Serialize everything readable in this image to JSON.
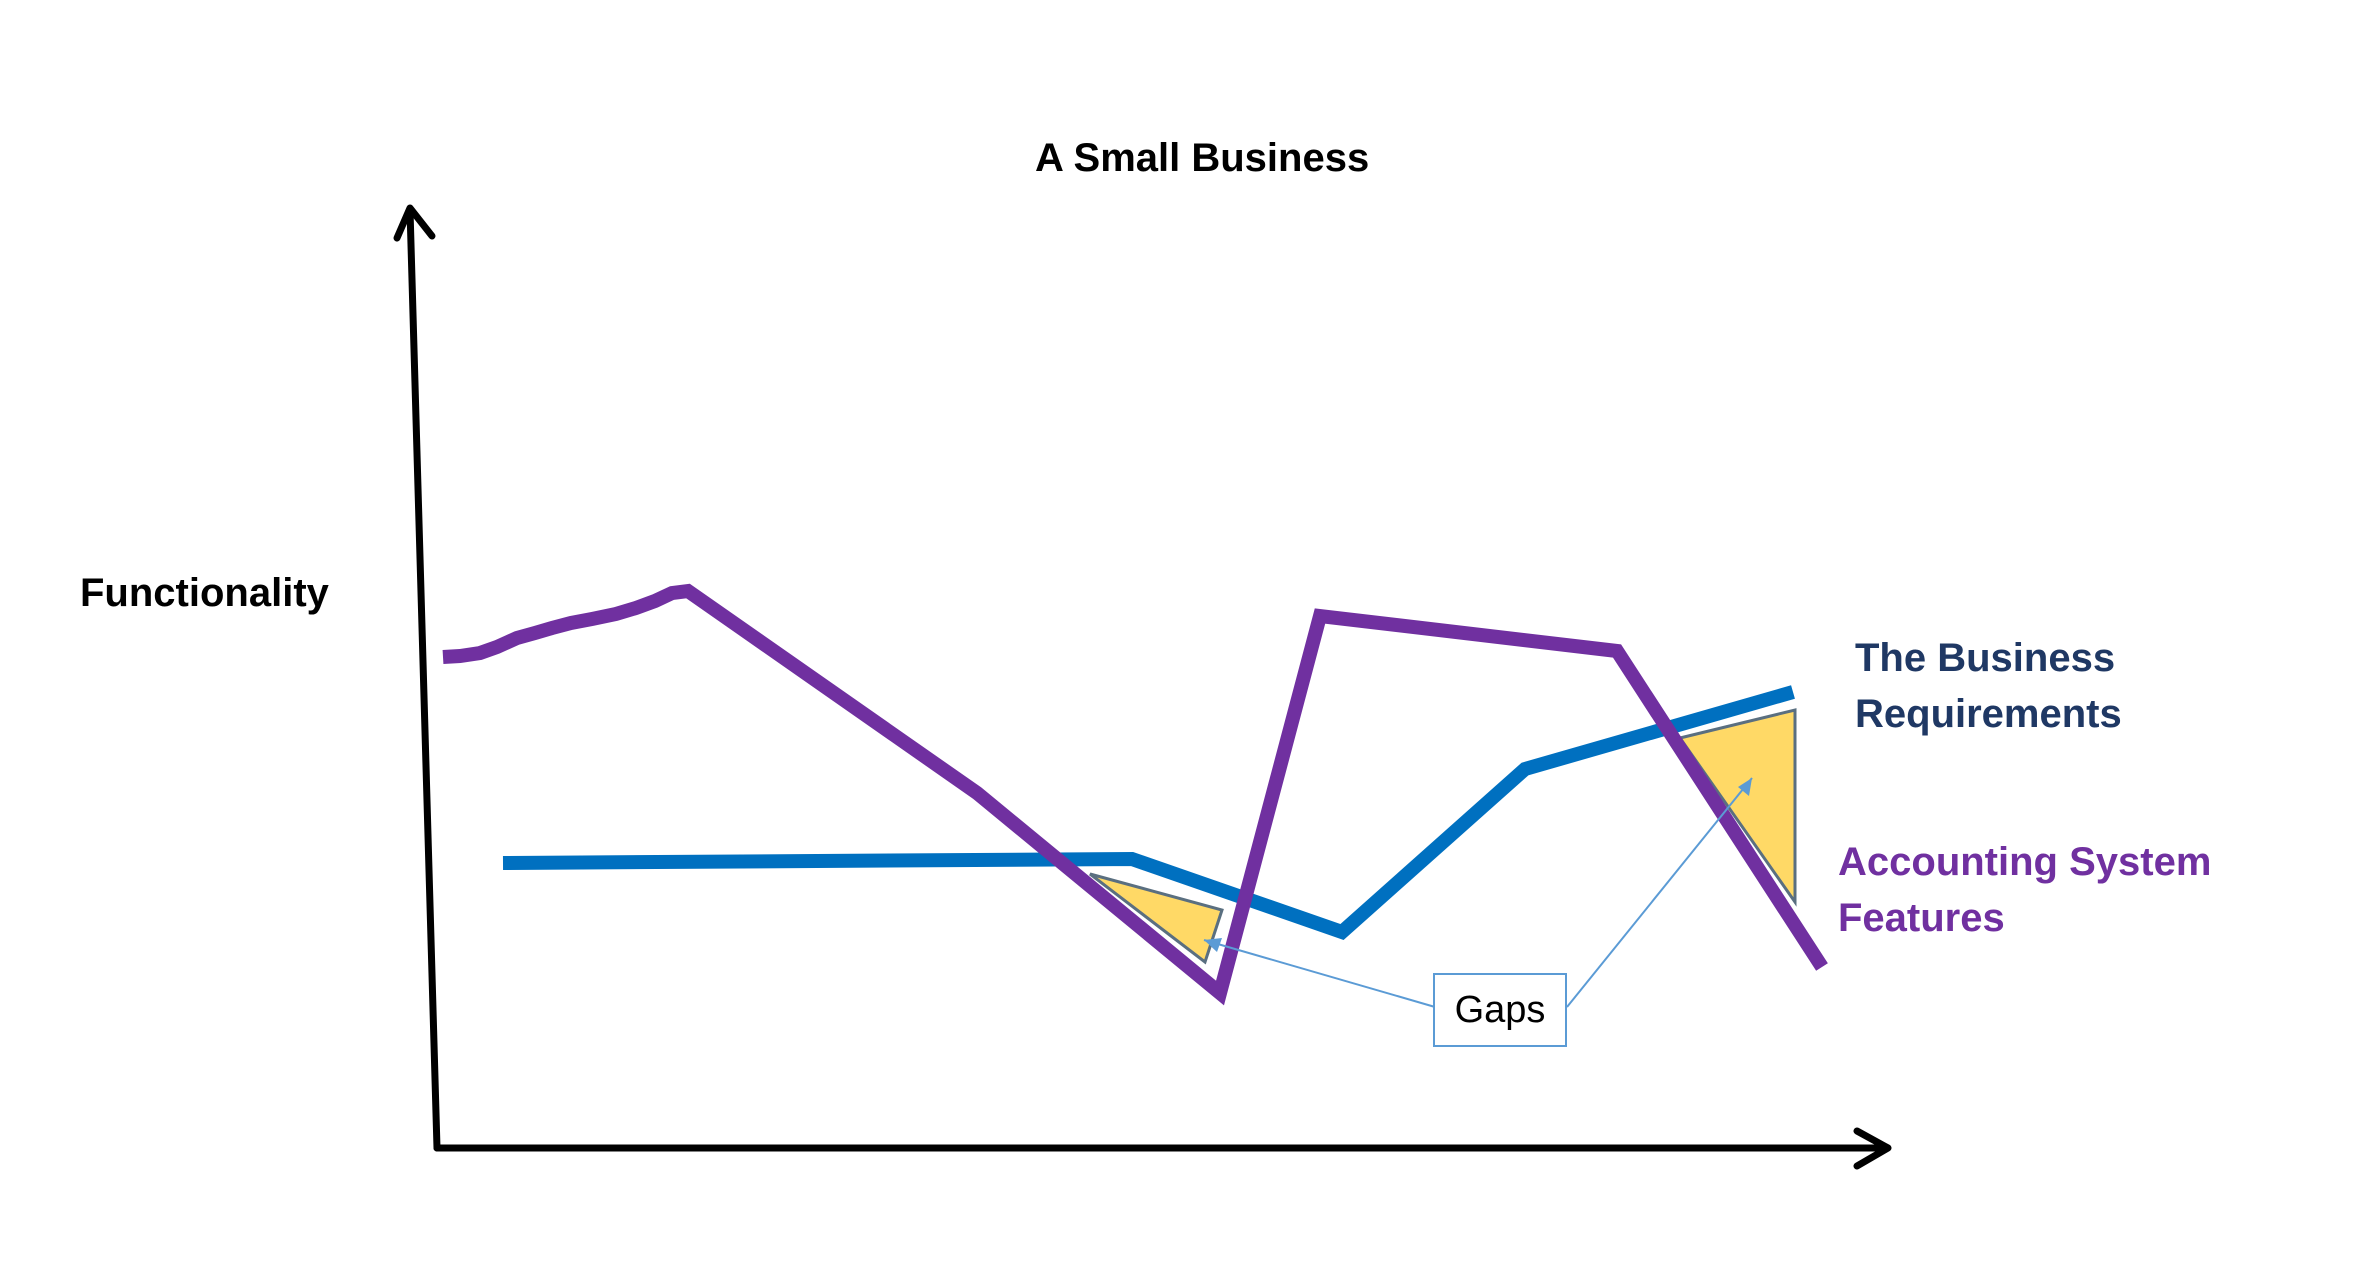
{
  "diagram": {
    "title": "A Small Business",
    "y_axis_label": "Functionality",
    "series": [
      {
        "name": "The Business Requirements",
        "lines": [
          "The Business",
          "Requirements"
        ],
        "color": "#0070c0"
      },
      {
        "name": "Accounting System Features",
        "lines": [
          "Accounting System",
          "Features"
        ],
        "color": "#7030a0"
      }
    ],
    "annotation": {
      "label": "Gaps",
      "fill_color": "#ffd966",
      "border_color": "#5b9bd5"
    },
    "colors": {
      "axis": "#000000",
      "requirements_line": "#0070c0",
      "features_line": "#7030a0",
      "requirements_label": "#1f3864",
      "features_label": "#7030a0",
      "gap_fill": "#ffd966",
      "callout": "#5b9bd5"
    }
  }
}
